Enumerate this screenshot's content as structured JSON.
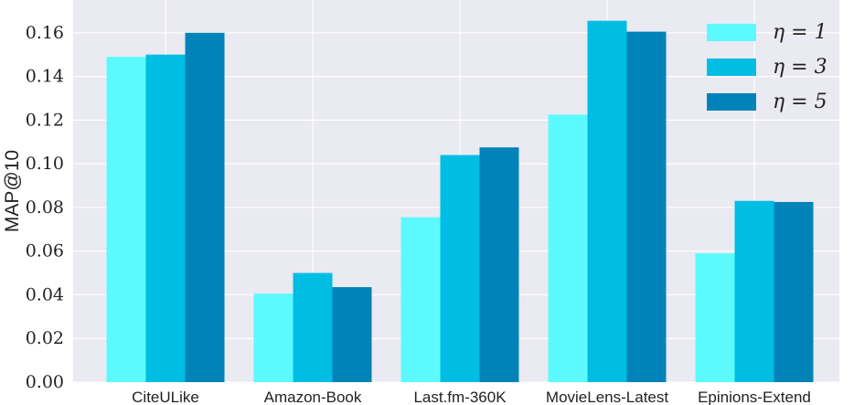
{
  "chart_data": {
    "type": "bar",
    "categories": [
      "CiteULike",
      "Amazon-Book",
      "Last.fm-360K",
      "MovieLens-Latest",
      "Epinions-Extend"
    ],
    "series": [
      {
        "name": "η = 1",
        "color": "#5cfaff",
        "values": [
          0.149,
          0.0405,
          0.0755,
          0.1225,
          0.059
        ]
      },
      {
        "name": "η = 3",
        "color": "#00bde3",
        "values": [
          0.15,
          0.05,
          0.104,
          0.1655,
          0.083
        ]
      },
      {
        "name": "η = 5",
        "color": "#0083b9",
        "values": [
          0.16,
          0.0435,
          0.1075,
          0.1605,
          0.0825
        ]
      }
    ],
    "ylabel": "MAP@10",
    "xlabel": "",
    "title": "",
    "ylim": [
      0,
      0.175
    ],
    "yticks": [
      "0.00",
      "0.02",
      "0.04",
      "0.06",
      "0.08",
      "0.10",
      "0.12",
      "0.14",
      "0.16"
    ],
    "grid": true,
    "legend_position": "top-right",
    "background_color": "#eaeaf2"
  }
}
